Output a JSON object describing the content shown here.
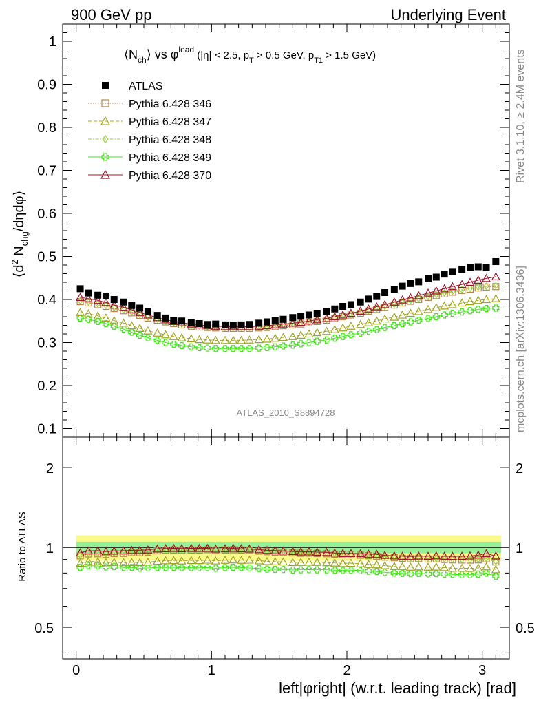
{
  "header": {
    "left": "900 GeV pp",
    "right": "Underlying Event"
  },
  "side_labels": {
    "rivet": "Rivet 3.1.10, ≥ 2.4M events",
    "mcplots": "mcplots.cern.ch [arXiv:1306.3436]"
  },
  "colors": {
    "atlas": "#000000",
    "p346": "#b8864b",
    "p347": "#a0a41e",
    "p348": "#9ad23c",
    "p349": "#46e61e",
    "p370": "#a0142d",
    "band_yellow": "#fafa8c",
    "band_green": "#96f096"
  },
  "chart_data": [
    {
      "type": "scatter",
      "title_parts": {
        "a": "⟨N",
        "a_sub": "ch",
        "b": "⟩ vs φ",
        "b_sup": "lead",
        "c": " (|η| < 2.5, p",
        "c_sub": "T",
        "d": " > 0.5 GeV, p",
        "d_sub": "T1",
        "e": " > 1.5 GeV)"
      },
      "ylabel_parts": {
        "a": "⟨d",
        "a_sup": "2",
        "b": " N",
        "b_sub": "chg",
        "c": "/dηdφ⟩"
      },
      "watermark": "ATLAS_2010_S8894728",
      "xlim": [
        -0.1,
        3.2
      ],
      "ylim": [
        0.08,
        1.04
      ],
      "yticks": [
        "0.1",
        "0.2",
        "0.3",
        "0.4",
        "0.5",
        "0.6",
        "0.7",
        "0.8",
        "0.9",
        "1"
      ],
      "x": [
        0.03,
        0.09,
        0.16,
        0.22,
        0.28,
        0.35,
        0.41,
        0.47,
        0.53,
        0.6,
        0.66,
        0.72,
        0.78,
        0.85,
        0.91,
        0.97,
        1.03,
        1.1,
        1.16,
        1.22,
        1.28,
        1.35,
        1.41,
        1.47,
        1.53,
        1.6,
        1.66,
        1.72,
        1.78,
        1.85,
        1.91,
        1.97,
        2.03,
        2.1,
        2.16,
        2.22,
        2.28,
        2.35,
        2.41,
        2.47,
        2.53,
        2.6,
        2.66,
        2.72,
        2.78,
        2.85,
        2.91,
        2.97,
        3.03,
        3.1
      ],
      "series": [
        {
          "name": "ATLAS",
          "key": "atlas",
          "marker": "square-filled",
          "values": [
            0.425,
            0.415,
            0.41,
            0.408,
            0.4,
            0.394,
            0.386,
            0.38,
            0.372,
            0.363,
            0.357,
            0.352,
            0.35,
            0.346,
            0.344,
            0.342,
            0.343,
            0.341,
            0.34,
            0.341,
            0.342,
            0.345,
            0.348,
            0.351,
            0.354,
            0.358,
            0.361,
            0.364,
            0.368,
            0.372,
            0.378,
            0.384,
            0.388,
            0.394,
            0.401,
            0.407,
            0.416,
            0.424,
            0.431,
            0.437,
            0.441,
            0.448,
            0.452,
            0.459,
            0.465,
            0.47,
            0.474,
            0.476,
            0.474,
            0.488
          ]
        },
        {
          "name": "Pythia 6.428 346",
          "key": "p346",
          "marker": "square-open",
          "values": [
            0.395,
            0.392,
            0.388,
            0.384,
            0.379,
            0.374,
            0.369,
            0.363,
            0.357,
            0.352,
            0.348,
            0.344,
            0.341,
            0.338,
            0.336,
            0.335,
            0.334,
            0.333,
            0.333,
            0.333,
            0.333,
            0.334,
            0.335,
            0.337,
            0.339,
            0.341,
            0.343,
            0.346,
            0.349,
            0.352,
            0.356,
            0.36,
            0.364,
            0.368,
            0.373,
            0.377,
            0.382,
            0.387,
            0.392,
            0.396,
            0.4,
            0.405,
            0.409,
            0.413,
            0.417,
            0.421,
            0.424,
            0.427,
            0.429,
            0.43
          ]
        },
        {
          "name": "Pythia 6.428 347",
          "key": "p347",
          "marker": "triangle-open",
          "values": [
            0.37,
            0.367,
            0.362,
            0.357,
            0.351,
            0.345,
            0.339,
            0.333,
            0.327,
            0.322,
            0.318,
            0.314,
            0.311,
            0.309,
            0.307,
            0.306,
            0.305,
            0.305,
            0.305,
            0.305,
            0.306,
            0.307,
            0.308,
            0.31,
            0.312,
            0.314,
            0.317,
            0.32,
            0.323,
            0.326,
            0.33,
            0.334,
            0.338,
            0.342,
            0.346,
            0.35,
            0.355,
            0.359,
            0.364,
            0.368,
            0.372,
            0.377,
            0.381,
            0.385,
            0.388,
            0.392,
            0.395,
            0.398,
            0.4,
            0.402
          ]
        },
        {
          "name": "Pythia 6.428 348",
          "key": "p348",
          "marker": "diamond-open",
          "values": [
            0.397,
            0.394,
            0.39,
            0.386,
            0.381,
            0.376,
            0.371,
            0.365,
            0.359,
            0.354,
            0.35,
            0.346,
            0.343,
            0.34,
            0.338,
            0.337,
            0.336,
            0.335,
            0.335,
            0.335,
            0.335,
            0.336,
            0.337,
            0.339,
            0.341,
            0.343,
            0.345,
            0.348,
            0.351,
            0.354,
            0.358,
            0.362,
            0.366,
            0.37,
            0.375,
            0.379,
            0.384,
            0.389,
            0.394,
            0.398,
            0.402,
            0.407,
            0.411,
            0.415,
            0.419,
            0.423,
            0.426,
            0.429,
            0.431,
            0.432
          ]
        },
        {
          "name": "Pythia 6.428 349",
          "key": "p349",
          "marker": "cross-open",
          "values": [
            0.357,
            0.354,
            0.349,
            0.344,
            0.338,
            0.331,
            0.324,
            0.317,
            0.311,
            0.305,
            0.3,
            0.296,
            0.293,
            0.29,
            0.288,
            0.287,
            0.286,
            0.286,
            0.286,
            0.286,
            0.286,
            0.287,
            0.288,
            0.29,
            0.292,
            0.294,
            0.297,
            0.3,
            0.303,
            0.306,
            0.31,
            0.314,
            0.318,
            0.322,
            0.326,
            0.33,
            0.335,
            0.339,
            0.344,
            0.348,
            0.352,
            0.356,
            0.36,
            0.364,
            0.368,
            0.371,
            0.374,
            0.377,
            0.379,
            0.38
          ]
        },
        {
          "name": "Pythia 6.428 370",
          "key": "p370",
          "marker": "triangle-open",
          "values": [
            0.405,
            0.402,
            0.398,
            0.393,
            0.387,
            0.382,
            0.376,
            0.37,
            0.364,
            0.358,
            0.353,
            0.349,
            0.346,
            0.343,
            0.341,
            0.339,
            0.338,
            0.337,
            0.337,
            0.337,
            0.337,
            0.338,
            0.339,
            0.341,
            0.343,
            0.345,
            0.347,
            0.35,
            0.353,
            0.356,
            0.36,
            0.364,
            0.368,
            0.373,
            0.378,
            0.383,
            0.388,
            0.394,
            0.399,
            0.404,
            0.409,
            0.415,
            0.42,
            0.425,
            0.43,
            0.435,
            0.44,
            0.445,
            0.449,
            0.453
          ]
        }
      ],
      "legend": {
        "placement": "top-left"
      }
    },
    {
      "type": "scatter",
      "ylabel": "Ratio to ATLAS",
      "xlabel": "left|φright| (w.r.t. leading track) [rad]",
      "xlim": [
        -0.1,
        3.2
      ],
      "ylim": [
        0.38,
        2.6
      ],
      "yscale": "log",
      "xticks": [
        "0",
        "1",
        "2",
        "3"
      ],
      "yticks": [
        "0.5",
        "1",
        "2"
      ],
      "band": {
        "yellow": [
          0.89,
          1.11
        ],
        "green": [
          0.95,
          1.05
        ]
      },
      "series_ratio": {
        "p346": [
          0.929,
          0.945,
          0.946,
          0.941,
          0.948,
          0.949,
          0.956,
          0.955,
          0.96,
          0.97,
          0.975,
          0.977,
          0.974,
          0.977,
          0.977,
          0.98,
          0.974,
          0.977,
          0.979,
          0.977,
          0.974,
          0.968,
          0.963,
          0.96,
          0.958,
          0.953,
          0.95,
          0.951,
          0.948,
          0.946,
          0.942,
          0.938,
          0.938,
          0.934,
          0.93,
          0.926,
          0.918,
          0.913,
          0.909,
          0.906,
          0.907,
          0.904,
          0.905,
          0.9,
          0.897,
          0.896,
          0.895,
          0.897,
          0.905,
          0.881
        ],
        "p347": [
          0.871,
          0.884,
          0.883,
          0.875,
          0.878,
          0.876,
          0.878,
          0.876,
          0.879,
          0.887,
          0.891,
          0.892,
          0.889,
          0.893,
          0.892,
          0.895,
          0.889,
          0.894,
          0.897,
          0.894,
          0.895,
          0.89,
          0.885,
          0.883,
          0.881,
          0.877,
          0.878,
          0.879,
          0.878,
          0.876,
          0.873,
          0.87,
          0.871,
          0.868,
          0.863,
          0.86,
          0.853,
          0.847,
          0.845,
          0.842,
          0.844,
          0.842,
          0.843,
          0.839,
          0.834,
          0.834,
          0.833,
          0.836,
          0.844,
          0.824
        ],
        "p348": [
          0.934,
          0.949,
          0.951,
          0.946,
          0.953,
          0.954,
          0.961,
          0.961,
          0.965,
          0.975,
          0.98,
          0.983,
          0.98,
          0.983,
          0.983,
          0.985,
          0.98,
          0.982,
          0.985,
          0.982,
          0.98,
          0.974,
          0.968,
          0.966,
          0.963,
          0.958,
          0.956,
          0.956,
          0.954,
          0.952,
          0.947,
          0.943,
          0.943,
          0.939,
          0.935,
          0.931,
          0.923,
          0.917,
          0.914,
          0.911,
          0.912,
          0.908,
          0.909,
          0.904,
          0.901,
          0.9,
          0.899,
          0.901,
          0.909,
          0.885
        ],
        "p349": [
          0.84,
          0.853,
          0.851,
          0.843,
          0.845,
          0.84,
          0.839,
          0.834,
          0.836,
          0.84,
          0.84,
          0.841,
          0.837,
          0.838,
          0.837,
          0.839,
          0.834,
          0.839,
          0.841,
          0.839,
          0.836,
          0.832,
          0.828,
          0.826,
          0.825,
          0.821,
          0.823,
          0.824,
          0.823,
          0.823,
          0.82,
          0.818,
          0.82,
          0.817,
          0.813,
          0.811,
          0.805,
          0.8,
          0.798,
          0.796,
          0.798,
          0.795,
          0.796,
          0.793,
          0.791,
          0.789,
          0.789,
          0.792,
          0.8,
          0.779
        ],
        "p370": [
          0.953,
          0.969,
          0.971,
          0.963,
          0.968,
          0.97,
          0.974,
          0.974,
          0.978,
          0.986,
          0.989,
          0.991,
          0.989,
          0.991,
          0.991,
          0.991,
          0.985,
          0.988,
          0.991,
          0.988,
          0.985,
          0.98,
          0.974,
          0.972,
          0.969,
          0.964,
          0.961,
          0.962,
          0.959,
          0.957,
          0.952,
          0.948,
          0.948,
          0.947,
          0.943,
          0.941,
          0.933,
          0.929,
          0.926,
          0.924,
          0.927,
          0.926,
          0.929,
          0.926,
          0.925,
          0.926,
          0.928,
          0.935,
          0.947,
          0.928
        ]
      }
    }
  ]
}
